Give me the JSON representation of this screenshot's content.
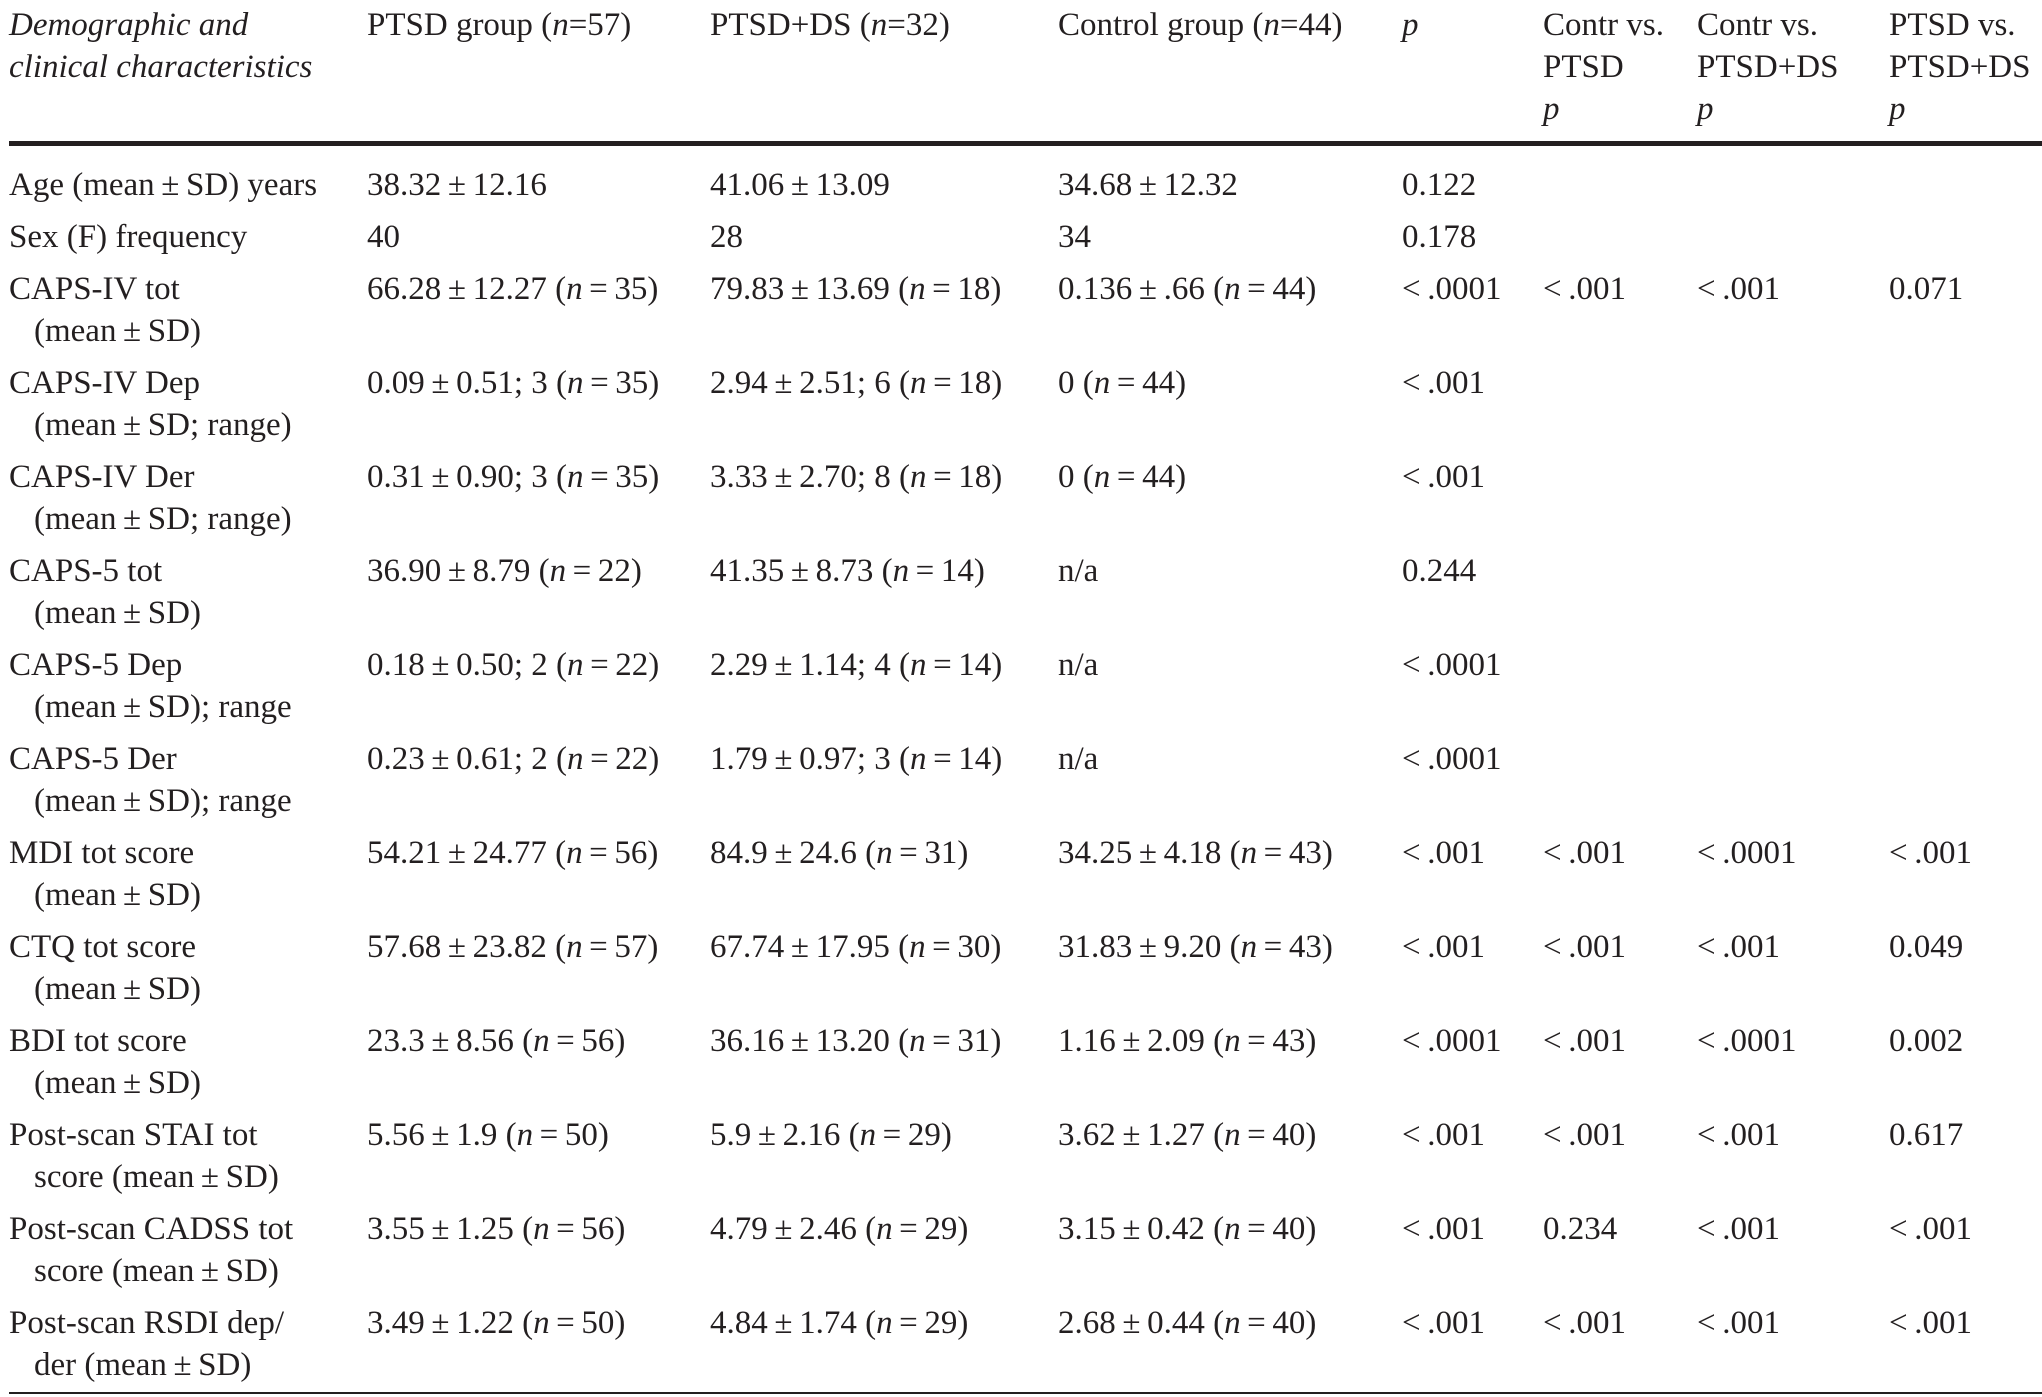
{
  "header": {
    "characteristics": [
      "Demographic and",
      "clinical characteristics"
    ],
    "ptsd": [
      "PTSD group (",
      "n",
      "=57)"
    ],
    "ptsd_ds": [
      "PTSD+DS (",
      "n",
      "=32)"
    ],
    "control": [
      "Control group (",
      "n",
      "=44)"
    ],
    "p": "p",
    "contr_vs_ptsd": [
      "Contr vs.",
      "PTSD",
      "p"
    ],
    "contr_vs_ptsdds": [
      "Contr vs.",
      "PTSD+DS",
      "p"
    ],
    "ptsd_vs_ptsdds": [
      "PTSD vs.",
      "PTSD+DS",
      "p"
    ]
  },
  "rows": [
    {
      "label": [
        "Age (mean ± SD) years",
        ""
      ],
      "ptsd": [
        "38.32 ± 12.16",
        "",
        ""
      ],
      "ptsd_ds": [
        "41.06 ± 13.09",
        "",
        ""
      ],
      "control": [
        "34.68 ± 12.32",
        "",
        ""
      ],
      "p": "0.122",
      "c1": "",
      "c2": "",
      "c3": ""
    },
    {
      "label": [
        "Sex (F) frequency",
        ""
      ],
      "ptsd": [
        "40",
        "",
        ""
      ],
      "ptsd_ds": [
        "28",
        "",
        ""
      ],
      "control": [
        "34",
        "",
        ""
      ],
      "p": "0.178",
      "c1": "",
      "c2": "",
      "c3": ""
    },
    {
      "label": [
        "CAPS-IV tot",
        "(mean ± SD)"
      ],
      "ptsd": [
        "66.28 ± 12.27 (",
        "n",
        " = 35)"
      ],
      "ptsd_ds": [
        "79.83 ± 13.69 (",
        "n",
        " = 18)"
      ],
      "control": [
        "0.136 ± .66 (",
        "n",
        " = 44)"
      ],
      "p": "< .0001",
      "c1": "< .001",
      "c2": "< .001",
      "c3": "0.071"
    },
    {
      "label": [
        "CAPS-IV Dep",
        "(mean ± SD; range)"
      ],
      "ptsd": [
        "0.09 ± 0.51; 3 (",
        "n",
        " = 35)"
      ],
      "ptsd_ds": [
        "2.94 ± 2.51; 6 (",
        "n",
        " = 18)"
      ],
      "control": [
        "0 (",
        "n",
        " = 44)"
      ],
      "p": "< .001",
      "c1": "",
      "c2": "",
      "c3": ""
    },
    {
      "label": [
        "CAPS-IV Der",
        "(mean ± SD; range)"
      ],
      "ptsd": [
        "0.31 ± 0.90; 3 (",
        "n",
        " = 35)"
      ],
      "ptsd_ds": [
        "3.33 ± 2.70; 8 (",
        "n",
        " = 18)"
      ],
      "control": [
        "0 (",
        "n",
        " = 44)"
      ],
      "p": "< .001",
      "c1": "",
      "c2": "",
      "c3": ""
    },
    {
      "label": [
        "CAPS-5 tot",
        "(mean ± SD)"
      ],
      "ptsd": [
        "36.90 ± 8.79 (",
        "n",
        " = 22)"
      ],
      "ptsd_ds": [
        "41.35 ± 8.73 (",
        "n",
        " = 14)"
      ],
      "control": [
        "n/a",
        "",
        ""
      ],
      "p": "0.244",
      "c1": "",
      "c2": "",
      "c3": ""
    },
    {
      "label": [
        "CAPS-5 Dep",
        "(mean ± SD); range"
      ],
      "ptsd": [
        "0.18 ± 0.50; 2 (",
        "n",
        " = 22)"
      ],
      "ptsd_ds": [
        "2.29 ± 1.14; 4 (",
        "n",
        " = 14)"
      ],
      "control": [
        "n/a",
        "",
        ""
      ],
      "p": "< .0001",
      "c1": "",
      "c2": "",
      "c3": ""
    },
    {
      "label": [
        "CAPS-5 Der",
        "(mean ± SD); range"
      ],
      "ptsd": [
        "0.23 ± 0.61; 2 (",
        "n",
        " = 22)"
      ],
      "ptsd_ds": [
        "1.79 ± 0.97; 3 (",
        "n",
        " = 14)"
      ],
      "control": [
        "n/a",
        "",
        ""
      ],
      "p": "< .0001",
      "c1": "",
      "c2": "",
      "c3": ""
    },
    {
      "label": [
        "MDI tot score",
        "(mean ± SD)"
      ],
      "ptsd": [
        "54.21 ± 24.77 (",
        "n",
        " = 56)"
      ],
      "ptsd_ds": [
        "84.9 ± 24.6 (",
        "n",
        " = 31)"
      ],
      "control": [
        "34.25 ± 4.18 (",
        "n",
        " = 43)"
      ],
      "p": "< .001",
      "c1": "< .001",
      "c2": "< .0001",
      "c3": "< .001"
    },
    {
      "label": [
        "CTQ tot score",
        "(mean ± SD)"
      ],
      "ptsd": [
        "57.68 ± 23.82 (",
        "n",
        " = 57)"
      ],
      "ptsd_ds": [
        "67.74 ± 17.95 (",
        "n",
        " = 30)"
      ],
      "control": [
        "31.83 ± 9.20 (",
        "n",
        " = 43)"
      ],
      "p": "< .001",
      "c1": "< .001",
      "c2": "< .001",
      "c3": "0.049"
    },
    {
      "label": [
        "BDI tot score",
        "(mean ± SD)"
      ],
      "ptsd": [
        "23.3 ± 8.56 (",
        "n",
        " = 56)"
      ],
      "ptsd_ds": [
        "36.16 ± 13.20 (",
        "n",
        " = 31)"
      ],
      "control": [
        "1.16 ± 2.09 (",
        "n",
        " = 43)"
      ],
      "p": "< .0001",
      "c1": "< .001",
      "c2": "< .0001",
      "c3": "0.002"
    },
    {
      "label": [
        "Post-scan STAI tot",
        "score (mean ± SD)"
      ],
      "ptsd": [
        "5.56 ± 1.9 (",
        "n",
        " = 50)"
      ],
      "ptsd_ds": [
        "5.9 ± 2.16 (",
        "n",
        " = 29)"
      ],
      "control": [
        "3.62 ± 1.27 (",
        "n",
        " = 40)"
      ],
      "p": "< .001",
      "c1": "< .001",
      "c2": "< .001",
      "c3": "0.617"
    },
    {
      "label": [
        "Post-scan CADSS tot",
        "score (mean ± SD)"
      ],
      "ptsd": [
        "3.55 ± 1.25 (",
        "n",
        " = 56)"
      ],
      "ptsd_ds": [
        "4.79 ± 2.46 (",
        "n",
        " = 29)"
      ],
      "control": [
        "3.15 ± 0.42 (",
        "n",
        " = 40)"
      ],
      "p": "< .001",
      "c1": "0.234",
      "c2": "< .001",
      "c3": "< .001"
    },
    {
      "label": [
        "Post-scan RSDI dep/",
        "der (mean ± SD)"
      ],
      "ptsd": [
        "3.49 ± 1.22 (",
        "n",
        " = 50)"
      ],
      "ptsd_ds": [
        "4.84 ± 1.74 (",
        "n",
        " = 29)"
      ],
      "control": [
        "2.68 ± 0.44 (",
        "n",
        " = 40)"
      ],
      "p": "< .001",
      "c1": "< .001",
      "c2": "< .001",
      "c3": "< .001"
    }
  ]
}
